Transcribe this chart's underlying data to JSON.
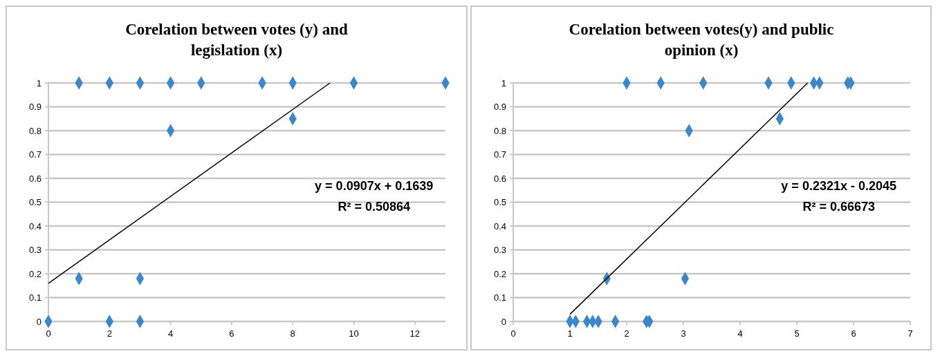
{
  "chart_data": [
    {
      "type": "scatter",
      "title": "Corelation between votes (y) and legislation (x)",
      "xlim": [
        0,
        13
      ],
      "xticks": [
        0,
        2,
        4,
        6,
        8,
        10,
        12
      ],
      "ylim": [
        0,
        1
      ],
      "yticks": [
        0,
        0.1,
        0.2,
        0.3,
        0.4,
        0.5,
        0.6,
        0.7,
        0.8,
        0.9,
        1
      ],
      "grid": "y",
      "marker": "diamond",
      "series": [
        {
          "color": "#3c87c8",
          "x": [
            0,
            1,
            2,
            3,
            4,
            5,
            7,
            8,
            10,
            13,
            4,
            8,
            1,
            3,
            2,
            3
          ],
          "values": [
            0,
            1,
            1,
            1,
            1,
            1,
            1,
            1,
            1,
            1,
            0.8,
            0.85,
            0.18,
            0.18,
            0,
            0
          ]
        },
        {
          "type": "line",
          "color": "#000000",
          "marker": "none",
          "x": [
            0,
            9.22
          ],
          "values": [
            0.16,
            1
          ]
        }
      ],
      "annotations": [
        "y = 0.0907x + 0.1639",
        "R² = 0.50864"
      ]
    },
    {
      "type": "scatter",
      "title": "Corelation between votes(y) and public opinion (x)",
      "xlim": [
        0,
        7
      ],
      "xticks": [
        0,
        1,
        2,
        3,
        4,
        5,
        6,
        7
      ],
      "ylim": [
        0,
        1
      ],
      "yticks": [
        0,
        0.1,
        0.2,
        0.3,
        0.4,
        0.5,
        0.6,
        0.7,
        0.8,
        0.9,
        1
      ],
      "grid": "y",
      "marker": "diamond",
      "series": [
        {
          "color": "#3c87c8",
          "x": [
            2,
            2.6,
            3.35,
            4.5,
            4.9,
            5.3,
            5.4,
            5.9,
            5.95,
            4.7,
            3.1,
            1.65,
            3.03,
            1,
            1.1,
            1.3,
            1.4,
            1.5,
            1.8,
            2.35,
            2.4
          ],
          "values": [
            1,
            1,
            1,
            1,
            1,
            1,
            1,
            1,
            1,
            0.85,
            0.8,
            0.18,
            0.18,
            0,
            0,
            0,
            0,
            0,
            0,
            0,
            0
          ]
        },
        {
          "type": "line",
          "color": "#000000",
          "marker": "none",
          "x": [
            1,
            5.19
          ],
          "values": [
            0.03,
            1
          ]
        }
      ],
      "annotations": [
        "y = 0.2321x - 0.2045",
        "R² = 0.66673"
      ]
    }
  ]
}
